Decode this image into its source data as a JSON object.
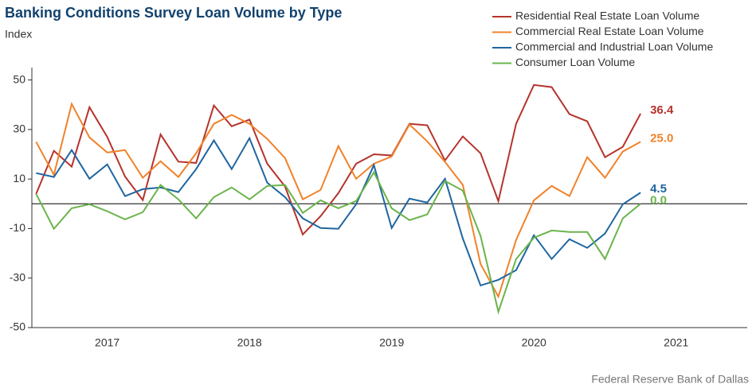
{
  "chart_data": {
    "type": "line",
    "title": "Banking Conditions Survey Loan Volume by Type",
    "y_label": "Index",
    "source": "Federal Reserve Bank of Dallas",
    "x": [
      2017,
      2017.125,
      2017.25,
      2017.375,
      2017.5,
      2017.625,
      2017.75,
      2017.875,
      2018,
      2018.125,
      2018.25,
      2018.375,
      2018.5,
      2018.625,
      2018.75,
      2018.875,
      2019,
      2019.125,
      2019.25,
      2019.375,
      2019.5,
      2019.625,
      2019.75,
      2019.875,
      2020,
      2020.125,
      2020.25,
      2020.375,
      2020.5,
      2020.625,
      2020.75,
      2020.875,
      2021,
      2021.125,
      2021.25
    ],
    "xlim": [
      2016.97,
      2022.0
    ],
    "xticks": [
      {
        "value": 2017.5,
        "label": "2017"
      },
      {
        "value": 2018.5,
        "label": "2018"
      },
      {
        "value": 2019.5,
        "label": "2019"
      },
      {
        "value": 2020.5,
        "label": "2020"
      },
      {
        "value": 2021.5,
        "label": "2021"
      }
    ],
    "ylim": [
      -50,
      55
    ],
    "yticks": [
      50,
      30,
      10,
      -10,
      -30,
      -50
    ],
    "series": [
      {
        "name": "Residential Real Estate Loan Volume",
        "color": "#b5332b",
        "values": [
          4,
          21.4,
          15,
          39,
          27,
          11,
          1.5,
          28,
          17,
          16.5,
          39.7,
          31.3,
          34,
          16.2,
          7,
          -12.4,
          -5,
          4.3,
          16.2,
          20,
          19.5,
          32.3,
          31.7,
          17.5,
          27.2,
          20.4,
          1.1,
          32.3,
          48,
          47.1,
          36.2,
          33.3,
          18.8,
          23,
          36.4
        ],
        "value_labels": [
          null,
          null,
          null,
          null,
          null,
          null,
          null,
          null,
          null,
          null,
          null,
          null,
          null,
          null,
          null,
          null,
          null,
          null,
          null,
          null,
          null,
          null,
          null,
          null,
          null,
          null,
          null,
          null,
          null,
          null,
          null,
          null,
          null,
          null,
          "36.4"
        ]
      },
      {
        "name": "Commercial Real Estate Loan Volume",
        "color": "#f0822a",
        "values": [
          25,
          11.7,
          40.3,
          26.8,
          20.7,
          21.7,
          10.5,
          17.2,
          10.8,
          20.4,
          32.3,
          35.9,
          32.3,
          26.2,
          18.5,
          1.8,
          5.6,
          23.3,
          10.1,
          16.2,
          19.1,
          32,
          25.2,
          16.9,
          7.6,
          -24.3,
          -37.5,
          -14.6,
          1.4,
          7.2,
          3.1,
          18.8,
          10.5,
          21.1,
          25.0
        ],
        "value_labels": [
          null,
          null,
          null,
          null,
          null,
          null,
          null,
          null,
          null,
          null,
          null,
          null,
          null,
          null,
          null,
          null,
          null,
          null,
          null,
          null,
          null,
          null,
          null,
          null,
          null,
          null,
          null,
          null,
          null,
          null,
          null,
          null,
          null,
          null,
          "25.0"
        ]
      },
      {
        "name": "Commercial and Industrial Loan Volume",
        "color": "#1f65a0",
        "values": [
          12.4,
          10.8,
          21.7,
          10.1,
          15.9,
          3.1,
          5.9,
          6.6,
          4.7,
          14,
          25.6,
          14,
          26.5,
          8.5,
          2.7,
          -5.9,
          -9.8,
          -10.1,
          -0.2,
          15.6,
          -9.8,
          2.1,
          0.5,
          10.1,
          -14,
          -33,
          -30.7,
          -26.8,
          -12.7,
          -22.3,
          -14.3,
          -17.8,
          -12,
          -0.2,
          4.5
        ],
        "value_labels": [
          null,
          null,
          null,
          null,
          null,
          null,
          null,
          null,
          null,
          null,
          null,
          null,
          null,
          null,
          null,
          null,
          null,
          null,
          null,
          null,
          null,
          null,
          null,
          null,
          null,
          null,
          null,
          null,
          null,
          null,
          null,
          null,
          null,
          null,
          "4.5"
        ]
      },
      {
        "name": "Consumer Loan Volume",
        "color": "#6ab44b",
        "values": [
          4,
          -10.1,
          -1.8,
          -0.2,
          -3,
          -6.3,
          -3.4,
          7.6,
          1.8,
          -5.9,
          2.7,
          6.6,
          1.8,
          7.2,
          7.6,
          -3.7,
          1.4,
          -1.8,
          1.1,
          12.7,
          -1.8,
          -6.6,
          -4.3,
          9.2,
          5.3,
          -13,
          -43.6,
          -22.3,
          -13.7,
          -10.8,
          -11.4,
          -11.4,
          -22.3,
          -5.9,
          0.0
        ],
        "value_labels": [
          null,
          null,
          null,
          null,
          null,
          null,
          null,
          null,
          null,
          null,
          null,
          null,
          null,
          null,
          null,
          null,
          null,
          null,
          null,
          null,
          null,
          null,
          null,
          null,
          null,
          null,
          null,
          null,
          null,
          null,
          null,
          null,
          null,
          null,
          "0.0"
        ]
      }
    ]
  }
}
